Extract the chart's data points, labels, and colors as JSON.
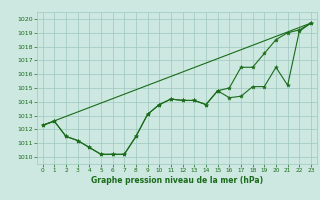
{
  "line1_x": [
    0,
    1,
    2,
    3,
    4,
    5,
    6,
    7,
    8,
    9,
    10,
    11,
    12,
    13,
    14,
    15,
    16,
    17,
    18,
    19,
    20,
    21,
    22,
    23
  ],
  "line1_y": [
    1012.3,
    1012.6,
    1011.5,
    1011.2,
    1010.7,
    1010.2,
    1010.2,
    1010.2,
    1011.5,
    1013.1,
    1013.8,
    1014.2,
    1014.1,
    1014.1,
    1013.8,
    1014.8,
    1014.3,
    1014.4,
    1015.1,
    1015.1,
    1016.5,
    1015.2,
    1019.1,
    1019.7
  ],
  "line2_x": [
    0,
    1,
    2,
    3,
    4,
    5,
    6,
    7,
    8,
    9,
    10,
    11,
    12,
    13,
    14,
    15,
    16,
    17,
    18,
    19,
    20,
    21,
    22,
    23
  ],
  "line2_y": [
    1012.3,
    1012.6,
    1011.5,
    1011.2,
    1010.7,
    1010.2,
    1010.2,
    1010.2,
    1011.5,
    1013.1,
    1013.8,
    1014.2,
    1014.1,
    1014.1,
    1013.8,
    1014.8,
    1015.0,
    1016.5,
    1016.5,
    1017.5,
    1018.5,
    1019.0,
    1019.2,
    1019.7
  ],
  "line3_x": [
    0,
    23
  ],
  "line3_y": [
    1012.3,
    1019.7
  ],
  "line_color": "#1a6b1a",
  "bg_color": "#cce8e0",
  "grid_color": "#9dc8be",
  "xlabel": "Graphe pression niveau de la mer (hPa)",
  "ylim": [
    1009.5,
    1020.5
  ],
  "xlim": [
    -0.5,
    23.5
  ],
  "yticks": [
    1010,
    1011,
    1012,
    1013,
    1014,
    1015,
    1016,
    1017,
    1018,
    1019,
    1020
  ],
  "xticks": [
    0,
    1,
    2,
    3,
    4,
    5,
    6,
    7,
    8,
    9,
    10,
    11,
    12,
    13,
    14,
    15,
    16,
    17,
    18,
    19,
    20,
    21,
    22,
    23
  ]
}
